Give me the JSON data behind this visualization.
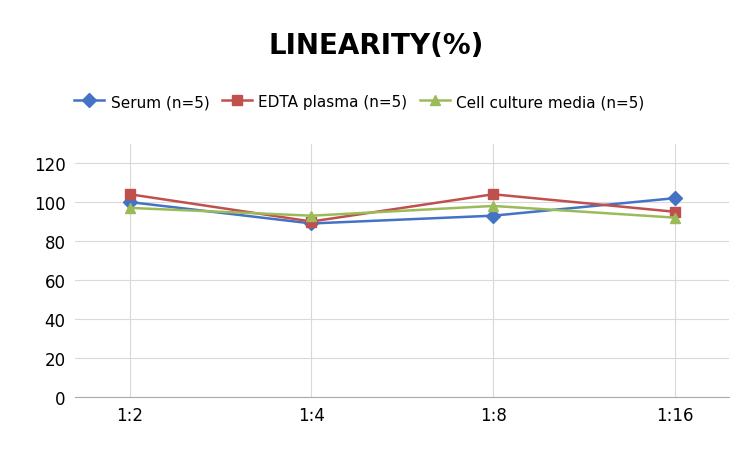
{
  "title": "LINEARITY(%)",
  "x_labels": [
    "1:2",
    "1:4",
    "1:8",
    "1:16"
  ],
  "x_positions": [
    0,
    1,
    2,
    3
  ],
  "series": [
    {
      "label": "Serum (n=5)",
      "values": [
        100,
        89,
        93,
        102
      ],
      "color": "#4472C4",
      "marker": "D",
      "marker_facecolor": "#4472C4"
    },
    {
      "label": "EDTA plasma (n=5)",
      "values": [
        104,
        90,
        104,
        95
      ],
      "color": "#C0504D",
      "marker": "s",
      "marker_facecolor": "#C0504D"
    },
    {
      "label": "Cell culture media (n=5)",
      "values": [
        97,
        93,
        98,
        92
      ],
      "color": "#9BBB59",
      "marker": "^",
      "marker_facecolor": "#9BBB59"
    }
  ],
  "ylim": [
    0,
    130
  ],
  "yticks": [
    0,
    20,
    40,
    60,
    80,
    100,
    120
  ],
  "grid_color": "#D9D9D9",
  "background_color": "#FFFFFF",
  "title_fontsize": 20,
  "tick_fontsize": 12,
  "legend_fontsize": 11
}
